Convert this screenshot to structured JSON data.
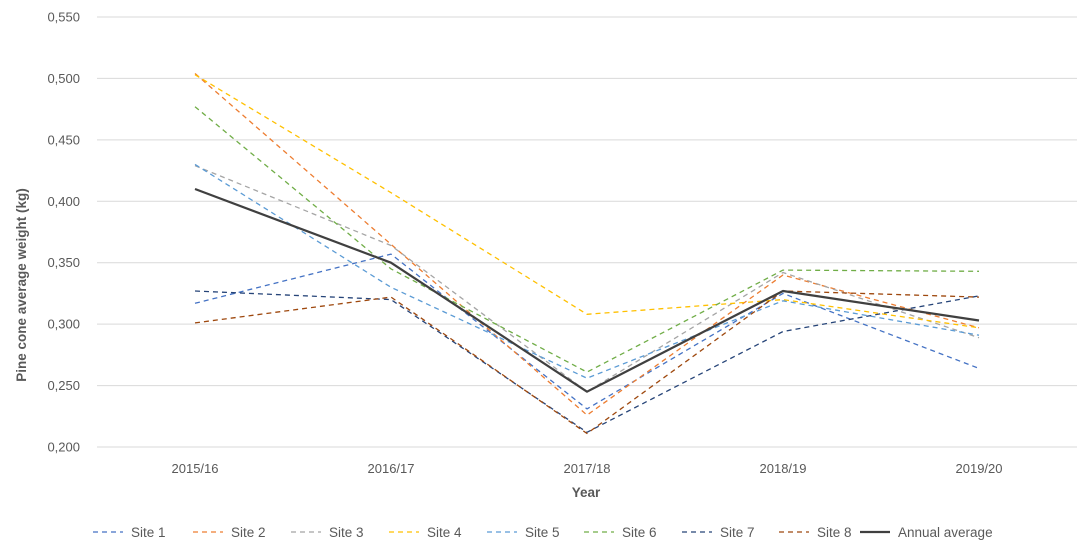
{
  "chart_data": {
    "type": "line",
    "title": "",
    "xlabel": "Year",
    "ylabel": "Pine cone average weight (kg)",
    "categories": [
      "2015/16",
      "2016/17",
      "2017/18",
      "2018/19",
      "2019/20"
    ],
    "ylim": [
      0.2,
      0.55
    ],
    "ytick_step": 0.05,
    "ytick_labels": [
      "0,200",
      "0,250",
      "0,300",
      "0,350",
      "0,400",
      "0,450",
      "0,500",
      "0,550"
    ],
    "grid": true,
    "legend_position": "bottom",
    "series": [
      {
        "name": "Site 1",
        "color": "#4472C4",
        "dashed": true,
        "values": [
          0.317,
          0.357,
          0.231,
          0.325,
          0.264
        ]
      },
      {
        "name": "Site 2",
        "color": "#ED7D31",
        "dashed": true,
        "values": [
          0.504,
          0.365,
          0.226,
          0.34,
          0.297
        ]
      },
      {
        "name": "Site 3",
        "color": "#A5A5A5",
        "dashed": true,
        "values": [
          0.429,
          0.364,
          0.245,
          0.342,
          0.289
        ]
      },
      {
        "name": "Site 4",
        "color": "#FFC000",
        "dashed": true,
        "values": [
          0.503,
          0.407,
          0.308,
          0.32,
          0.297
        ]
      },
      {
        "name": "Site 5",
        "color": "#5B9BD5",
        "dashed": true,
        "values": [
          0.43,
          0.33,
          0.256,
          0.319,
          0.291
        ]
      },
      {
        "name": "Site 6",
        "color": "#70AD47",
        "dashed": true,
        "values": [
          0.477,
          0.345,
          0.261,
          0.344,
          0.343
        ]
      },
      {
        "name": "Site 7",
        "color": "#264478",
        "dashed": true,
        "values": [
          0.327,
          0.32,
          0.212,
          0.294,
          0.323
        ]
      },
      {
        "name": "Site 8",
        "color": "#9E480E",
        "dashed": true,
        "values": [
          0.301,
          0.322,
          0.211,
          0.327,
          0.322
        ]
      },
      {
        "name": "Annual average",
        "color": "#404040",
        "dashed": false,
        "values": [
          0.41,
          0.35,
          0.245,
          0.327,
          0.303
        ]
      }
    ]
  }
}
